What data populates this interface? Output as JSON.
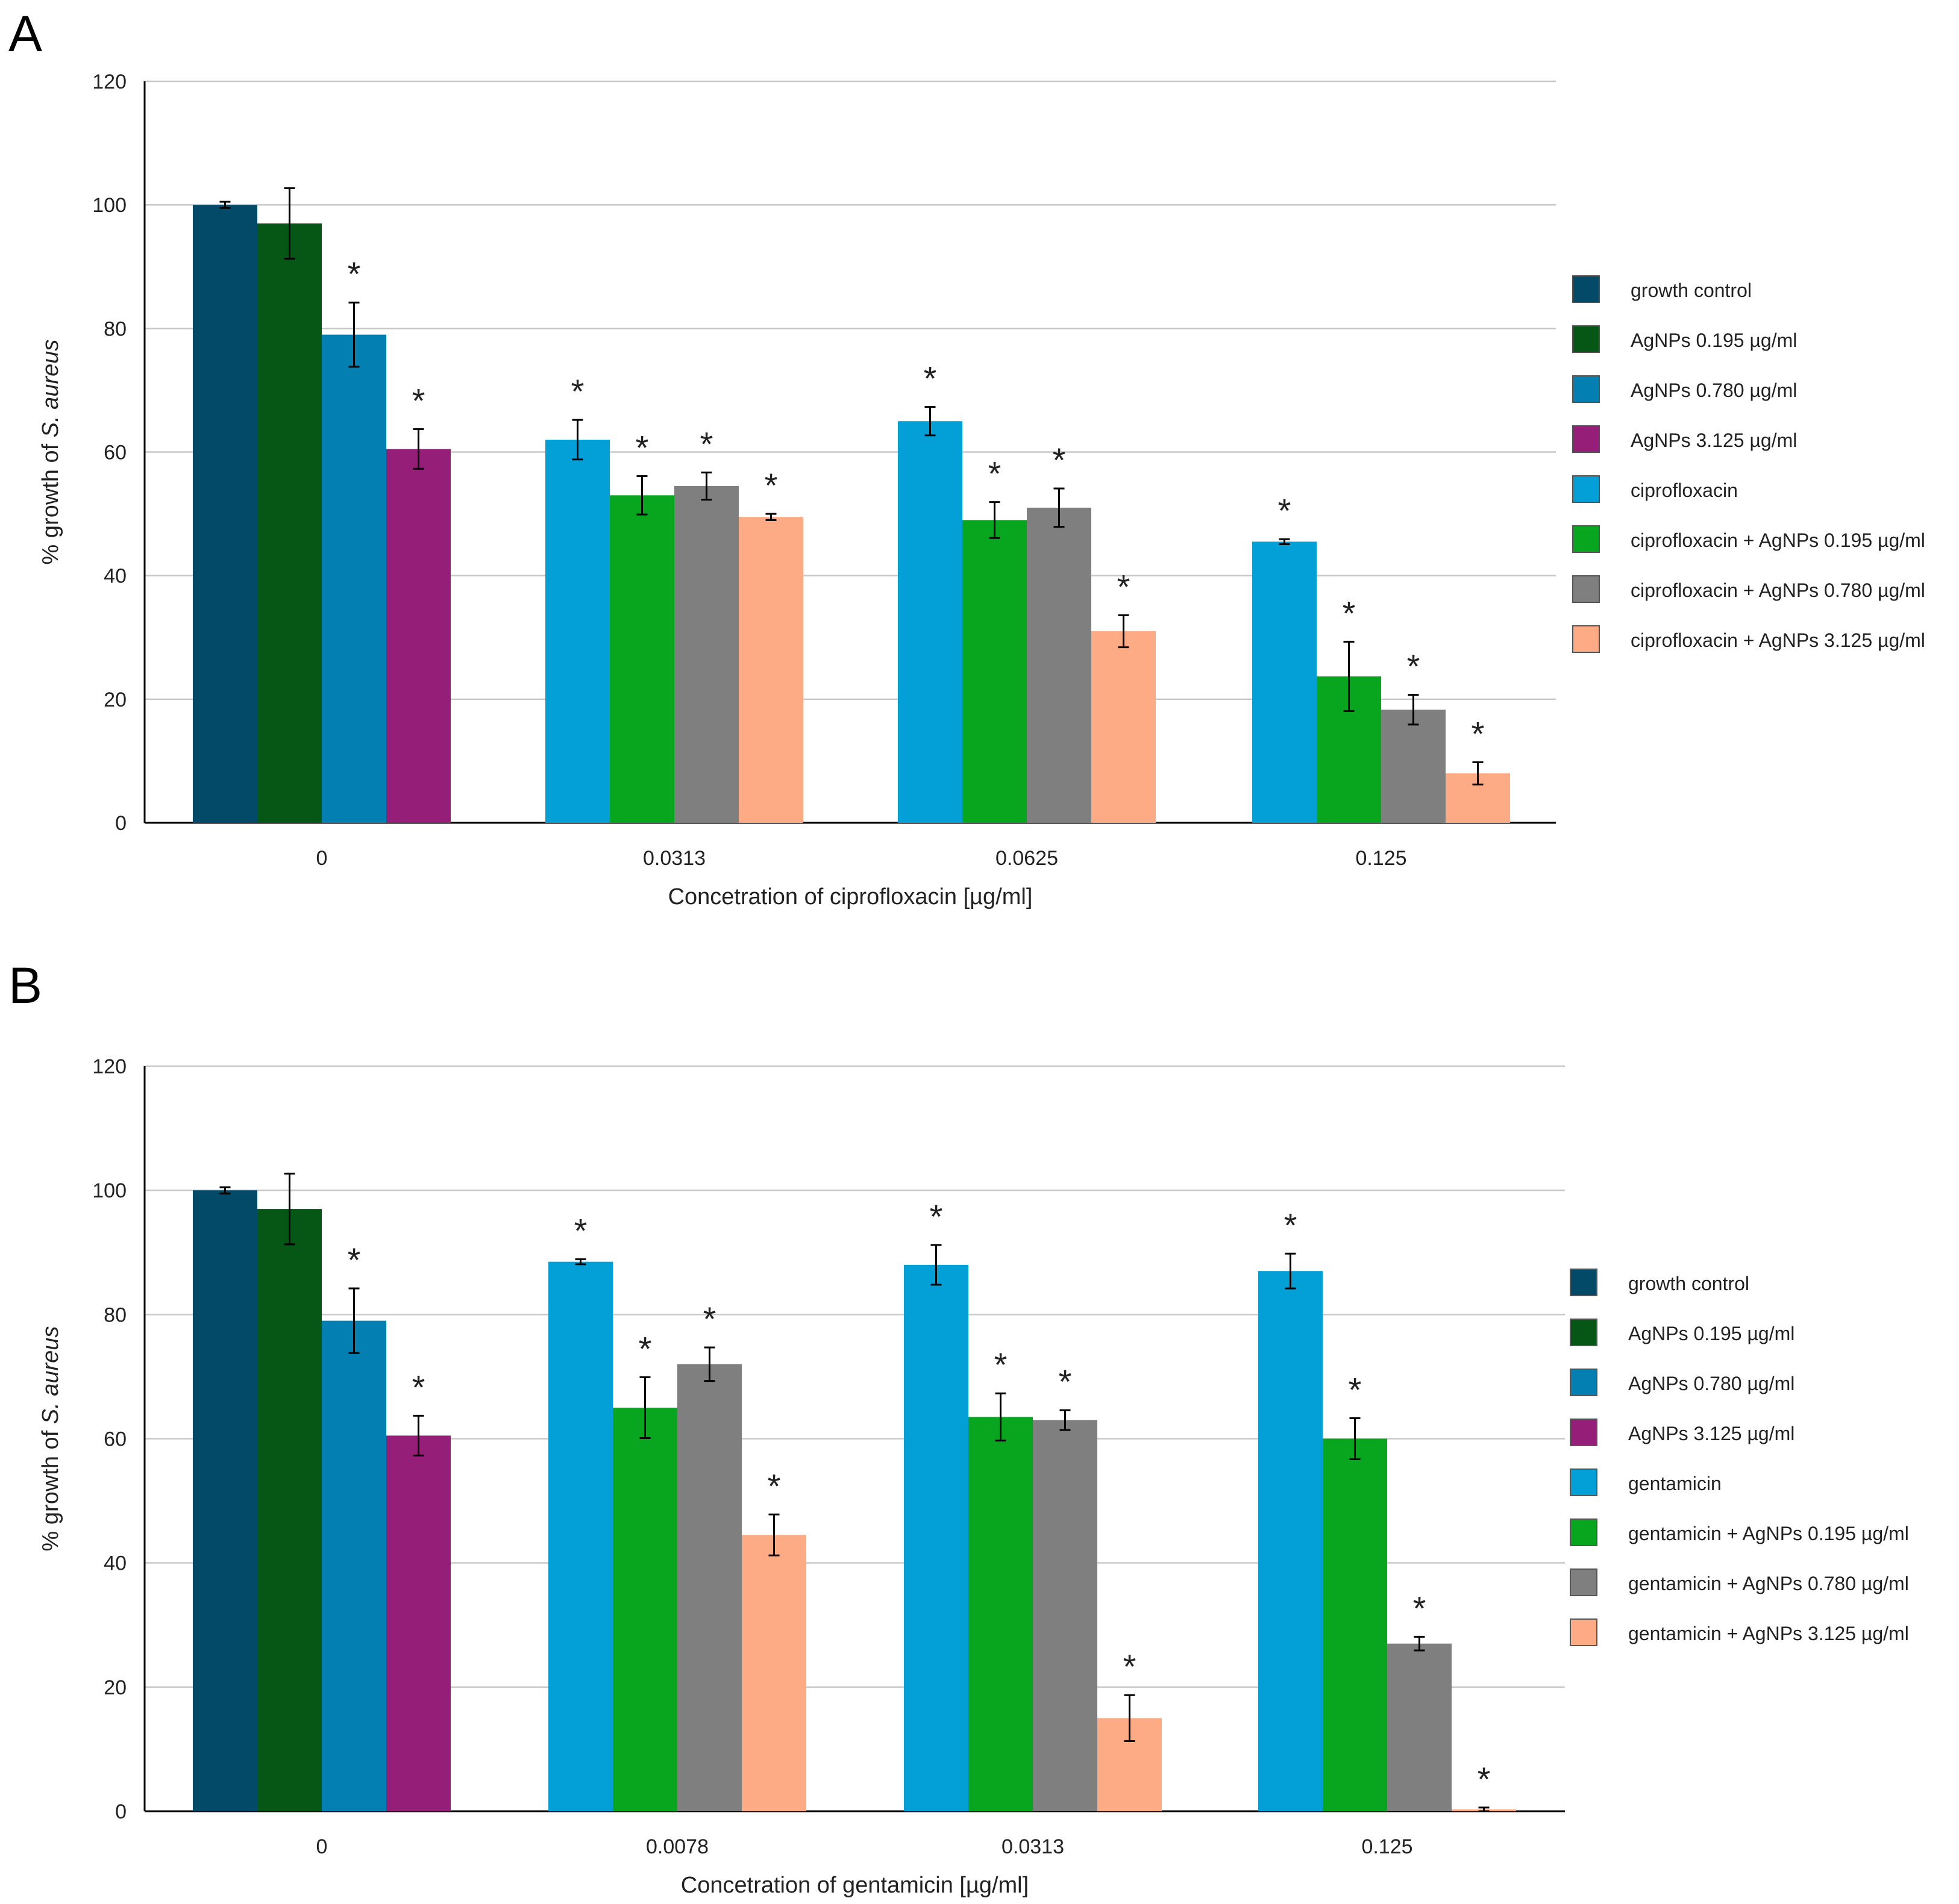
{
  "series_colors": [
    "#034a69",
    "#065716",
    "#037fb2",
    "#951e78",
    "#03a0d8",
    "#07a61e",
    "#7f7f7f",
    "#fcab85"
  ],
  "chart_data": [
    {
      "type": "bar",
      "panel": "A",
      "xlabel": "Concetration of ciprofloxacin [µg/ml]",
      "ylabel_prefix": "% growth of ",
      "ylabel_italic": "S. aureus",
      "ylim": [
        0,
        120
      ],
      "yticks": [
        "0",
        "20",
        "40",
        "60",
        "80",
        "100",
        "120"
      ],
      "grid": true,
      "legend_position": "right",
      "categories": [
        "0",
        "0.0313",
        "0.0625",
        "0.125"
      ],
      "series": [
        {
          "name": "growth control",
          "values": [
            100,
            null,
            null,
            null
          ],
          "errors": [
            0.5,
            null,
            null,
            null
          ],
          "sig": [
            false,
            null,
            null,
            null
          ]
        },
        {
          "name": "AgNPs 0.195 µg/ml",
          "values": [
            97,
            null,
            null,
            null
          ],
          "errors": [
            5.7,
            null,
            null,
            null
          ],
          "sig": [
            false,
            null,
            null,
            null
          ]
        },
        {
          "name": "AgNPs 0.780 µg/ml",
          "values": [
            79,
            null,
            null,
            null
          ],
          "errors": [
            5.2,
            null,
            null,
            null
          ],
          "sig": [
            true,
            null,
            null,
            null
          ]
        },
        {
          "name": "AgNPs 3.125 µg/ml",
          "values": [
            60.5,
            null,
            null,
            null
          ],
          "errors": [
            3.2,
            null,
            null,
            null
          ],
          "sig": [
            true,
            null,
            null,
            null
          ]
        },
        {
          "name": "ciprofloxacin",
          "values": [
            null,
            62,
            65,
            45.5
          ],
          "errors": [
            null,
            3.2,
            2.3,
            0.4
          ],
          "sig": [
            null,
            true,
            true,
            true
          ]
        },
        {
          "name": "ciprofloxacin + AgNPs 0.195 µg/ml",
          "values": [
            null,
            53,
            49,
            23.7
          ],
          "errors": [
            null,
            3.1,
            2.9,
            5.6
          ],
          "sig": [
            null,
            true,
            true,
            true
          ]
        },
        {
          "name": "ciprofloxacin + AgNPs 0.780 µg/ml",
          "values": [
            null,
            54.5,
            51,
            18.3
          ],
          "errors": [
            null,
            2.2,
            3.1,
            2.4
          ],
          "sig": [
            null,
            true,
            true,
            true
          ]
        },
        {
          "name": "ciprofloxacin + AgNPs 3.125 µg/ml",
          "values": [
            null,
            49.5,
            31,
            8
          ],
          "errors": [
            null,
            0.5,
            2.6,
            1.8
          ],
          "sig": [
            null,
            true,
            true,
            true
          ]
        }
      ],
      "significance_marker": "*"
    },
    {
      "type": "bar",
      "panel": "B",
      "xlabel": "Concetration of gentamicin [µg/ml]",
      "ylabel_prefix": "% growth of ",
      "ylabel_italic": "S. aureus",
      "ylim": [
        0,
        120
      ],
      "yticks": [
        "0",
        "20",
        "40",
        "60",
        "80",
        "100",
        "120"
      ],
      "grid": true,
      "legend_position": "right",
      "categories": [
        "0",
        "0.0078",
        "0.0313",
        "0.125"
      ],
      "series": [
        {
          "name": "growth control",
          "values": [
            100,
            null,
            null,
            null
          ],
          "errors": [
            0.5,
            null,
            null,
            null
          ],
          "sig": [
            false,
            null,
            null,
            null
          ]
        },
        {
          "name": "AgNPs 0.195 µg/ml",
          "values": [
            97,
            null,
            null,
            null
          ],
          "errors": [
            5.7,
            null,
            null,
            null
          ],
          "sig": [
            false,
            null,
            null,
            null
          ]
        },
        {
          "name": "AgNPs 0.780 µg/ml",
          "values": [
            79,
            null,
            null,
            null
          ],
          "errors": [
            5.2,
            null,
            null,
            null
          ],
          "sig": [
            true,
            null,
            null,
            null
          ]
        },
        {
          "name": "AgNPs 3.125 µg/ml",
          "values": [
            60.5,
            null,
            null,
            null
          ],
          "errors": [
            3.2,
            null,
            null,
            null
          ],
          "sig": [
            true,
            null,
            null,
            null
          ]
        },
        {
          "name": "gentamicin",
          "values": [
            null,
            88.5,
            88,
            87
          ],
          "errors": [
            null,
            0.4,
            3.2,
            2.8
          ],
          "sig": [
            null,
            true,
            true,
            true
          ]
        },
        {
          "name": "gentamicin + AgNPs 0.195 µg/ml",
          "values": [
            null,
            65,
            63.5,
            60
          ],
          "errors": [
            null,
            4.9,
            3.8,
            3.3
          ],
          "sig": [
            null,
            true,
            true,
            true
          ]
        },
        {
          "name": "gentamicin + AgNPs 0.780 µg/ml",
          "values": [
            null,
            72,
            63,
            27
          ],
          "errors": [
            null,
            2.7,
            1.6,
            1.1
          ],
          "sig": [
            null,
            true,
            true,
            true
          ]
        },
        {
          "name": "gentamicin + AgNPs 3.125 µg/ml",
          "values": [
            null,
            44.5,
            15,
            0.3
          ],
          "errors": [
            null,
            3.3,
            3.7,
            0.3
          ],
          "sig": [
            null,
            true,
            true,
            true
          ]
        }
      ],
      "significance_marker": "*"
    }
  ],
  "panels": {
    "a_label": "A",
    "b_label": "B"
  }
}
